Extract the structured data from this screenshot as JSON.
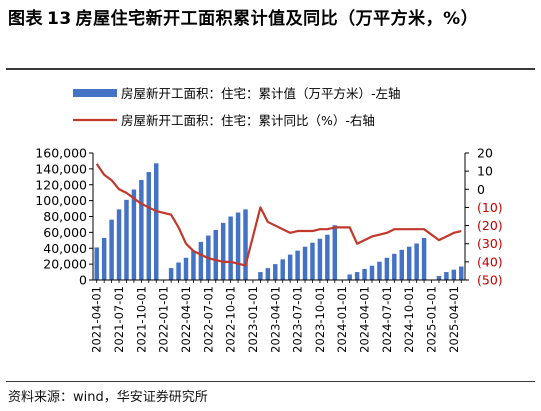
{
  "figure": {
    "label": "图表",
    "number": "13",
    "title": "房屋住宅新开工面积累计值及同比（万平方米，%）"
  },
  "source": "资料来源：wind，华安证券研究所",
  "colors": {
    "bar": "#4472c4",
    "line": "#c0392b",
    "negative_tick": "#c00000"
  },
  "chart_data": {
    "type": "bar",
    "legend": [
      "房屋新开工面积：住宅：累计值（万平方米）-左轴",
      "房屋新开工面积：住宅：累计同比（%）-右轴"
    ],
    "legend_position": "top",
    "x": [
      "2021-04",
      "2021-05",
      "2021-06",
      "2021-07",
      "2021-08",
      "2021-09",
      "2021-10",
      "2021-11",
      "2021-12",
      "2022-01",
      "2022-02",
      "2022-03",
      "2022-04",
      "2022-05",
      "2022-06",
      "2022-07",
      "2022-08",
      "2022-09",
      "2022-10",
      "2022-11",
      "2022-12",
      "2023-01",
      "2023-02",
      "2023-03",
      "2023-04",
      "2023-05",
      "2023-06",
      "2023-07",
      "2023-08",
      "2023-09",
      "2023-10",
      "2023-11",
      "2023-12",
      "2024-01",
      "2024-02",
      "2024-03",
      "2024-04",
      "2024-05",
      "2024-06",
      "2024-07",
      "2024-08",
      "2024-09",
      "2024-10",
      "2024-11",
      "2024-12",
      "2025-01",
      "2025-02",
      "2025-03",
      "2025-04",
      "2025-05"
    ],
    "x_tick_labels": [
      "2021-04-01",
      "2021-07-01",
      "2021-10-01",
      "2022-01-01",
      "2022-04-01",
      "2022-07-01",
      "2022-10-01",
      "2023-01-01",
      "2023-04-01",
      "2023-07-01",
      "2023-10-01",
      "2024-01-01",
      "2024-04-01",
      "2024-07-01",
      "2024-10-01",
      "2025-01-01",
      "2025-04-01"
    ],
    "x_tick_every": 3,
    "series": [
      {
        "name": "房屋新开工面积：住宅：累计值（万平方米）-左轴",
        "type": "bar",
        "axis": "left",
        "values": [
          41000,
          53000,
          76000,
          89000,
          101000,
          114000,
          126000,
          136000,
          147000,
          null,
          15000,
          22000,
          28000,
          37000,
          48000,
          56000,
          63000,
          72000,
          80000,
          85000,
          89000,
          null,
          10000,
          15000,
          20000,
          26000,
          32000,
          37000,
          42000,
          47000,
          52000,
          57000,
          69000,
          null,
          7000,
          10000,
          14000,
          18000,
          23000,
          28000,
          33000,
          38000,
          42000,
          46000,
          53000,
          null,
          5000,
          10000,
          13000,
          17000
        ]
      },
      {
        "name": "房屋新开工面积：住宅：累计同比（%）-右轴",
        "type": "line",
        "axis": "right",
        "values": [
          14,
          8,
          5,
          0,
          -2,
          -5,
          -8,
          -10,
          -12,
          null,
          -14,
          -21,
          -30,
          -34,
          -36,
          -38,
          -39,
          -40,
          -40,
          -41,
          -42,
          null,
          -10,
          -18,
          -20,
          -22,
          -24,
          -23,
          -23,
          -23,
          -22,
          -22,
          -21,
          null,
          -21,
          -30,
          -28,
          -26,
          -25,
          -24,
          -22,
          -22,
          -22,
          -22,
          -22,
          null,
          -28,
          -26,
          -24,
          -23
        ]
      }
    ],
    "left_axis": {
      "min": 0,
      "max": 160000,
      "step": 20000,
      "tick_labels": [
        "0",
        "20,000",
        "40,000",
        "60,000",
        "80,000",
        "100,000",
        "120,000",
        "140,000",
        "160,000"
      ]
    },
    "right_axis": {
      "min": -50,
      "max": 20,
      "step": 10,
      "tick_labels": [
        "(50)",
        "(40)",
        "(30)",
        "(20)",
        "(10)",
        "0",
        "10",
        "20"
      ]
    },
    "grid": false
  }
}
